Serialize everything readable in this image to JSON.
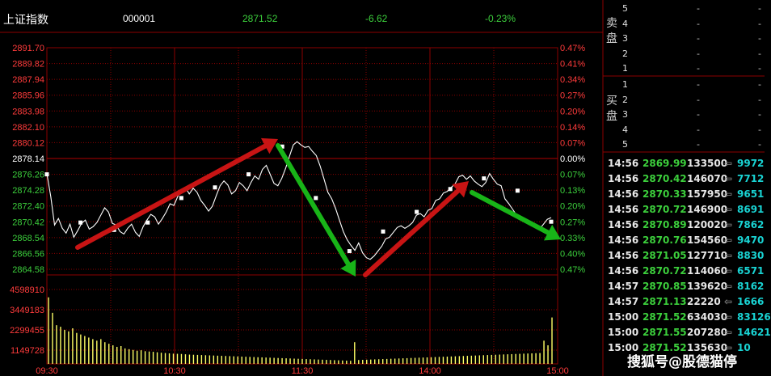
{
  "header": {
    "index_name": "上证指数",
    "code": "000001",
    "last_price": "2871.52",
    "change": "-6.62",
    "change_pct": "-0.23%"
  },
  "colors": {
    "up": "#ff3b3b",
    "down": "#3ccf3c",
    "text": "#c8c8c8",
    "grid": "#8b0000",
    "price_line": "#ffffff",
    "volume": "#ffff66",
    "arrow_up": "#c81414",
    "arrow_down": "#18b418"
  },
  "left_axis": [
    {
      "label": "2891.70",
      "kind": "up"
    },
    {
      "label": "2889.82",
      "kind": "up"
    },
    {
      "label": "2887.94",
      "kind": "up"
    },
    {
      "label": "2885.96",
      "kind": "up"
    },
    {
      "label": "2883.98",
      "kind": "up"
    },
    {
      "label": "2882.10",
      "kind": "up"
    },
    {
      "label": "2880.12",
      "kind": "up"
    },
    {
      "label": "2878.14",
      "kind": "base"
    },
    {
      "label": "2876.26",
      "kind": "down"
    },
    {
      "label": "2874.28",
      "kind": "down"
    },
    {
      "label": "2872.40",
      "kind": "down"
    },
    {
      "label": "2870.42",
      "kind": "down"
    },
    {
      "label": "2868.54",
      "kind": "down"
    },
    {
      "label": "2866.56",
      "kind": "down"
    },
    {
      "label": "2864.58",
      "kind": "down"
    }
  ],
  "right_axis": [
    {
      "label": "0.47%",
      "kind": "up"
    },
    {
      "label": "0.41%",
      "kind": "up"
    },
    {
      "label": "0.34%",
      "kind": "up"
    },
    {
      "label": "0.27%",
      "kind": "up"
    },
    {
      "label": "0.20%",
      "kind": "up"
    },
    {
      "label": "0.14%",
      "kind": "up"
    },
    {
      "label": "0.07%",
      "kind": "up"
    },
    {
      "label": "0.00%",
      "kind": "base"
    },
    {
      "label": "0.07%",
      "kind": "down"
    },
    {
      "label": "0.13%",
      "kind": "down"
    },
    {
      "label": "0.20%",
      "kind": "down"
    },
    {
      "label": "0.27%",
      "kind": "down"
    },
    {
      "label": "0.33%",
      "kind": "down"
    },
    {
      "label": "0.40%",
      "kind": "down"
    },
    {
      "label": "0.47%",
      "kind": "down"
    }
  ],
  "volume_axis": [
    "4598910",
    "3449183",
    "2299455",
    "1149728"
  ],
  "time_axis": [
    "09:30",
    "10:30",
    "11:30",
    "14:00",
    "15:00"
  ],
  "price_series": [
    2876.3,
    2873.5,
    2870.0,
    2870.8,
    2869.6,
    2869.0,
    2870.1,
    2868.5,
    2869.3,
    2870.2,
    2870.6,
    2869.5,
    2869.8,
    2870.3,
    2871.2,
    2872.1,
    2871.6,
    2870.2,
    2870.0,
    2869.2,
    2868.9,
    2869.6,
    2870.1,
    2869.1,
    2868.6,
    2869.8,
    2870.6,
    2871.3,
    2871.0,
    2870.1,
    2870.8,
    2871.6,
    2872.6,
    2872.4,
    2873.5,
    2874.2,
    2874.6,
    2873.8,
    2874.5,
    2874.0,
    2873.0,
    2872.4,
    2871.7,
    2872.3,
    2873.6,
    2874.8,
    2875.4,
    2874.9,
    2873.8,
    2874.2,
    2875.2,
    2874.8,
    2874.2,
    2875.2,
    2876.0,
    2875.6,
    2876.8,
    2877.3,
    2876.2,
    2875.1,
    2874.8,
    2875.7,
    2876.9,
    2878.4,
    2879.8,
    2880.2,
    2879.8,
    2879.5,
    2879.6,
    2879.0,
    2878.5,
    2877.2,
    2875.6,
    2874.0,
    2873.2,
    2872.0,
    2870.6,
    2869.2,
    2868.2,
    2867.5,
    2866.9,
    2867.8,
    2866.6,
    2866.0,
    2865.8,
    2866.2,
    2866.8,
    2867.4,
    2868.3,
    2868.5,
    2869.1,
    2869.7,
    2869.9,
    2869.6,
    2869.9,
    2870.3,
    2871.2,
    2871.4,
    2871.0,
    2871.8,
    2872.0,
    2873.0,
    2873.2,
    2873.9,
    2874.1,
    2874.6,
    2875.0,
    2875.9,
    2876.1,
    2875.6,
    2876.0,
    2875.4,
    2875.0,
    2874.7,
    2875.2,
    2876.3,
    2875.6,
    2875.0,
    2874.8,
    2873.2,
    2872.6,
    2871.9,
    2871.2,
    2870.9,
    2870.6,
    2870.4,
    2870.0,
    2869.9,
    2869.5,
    2870.1,
    2870.7,
    2870.9
  ],
  "avg_markers": [
    2876.2,
    2870.3,
    2869.4,
    2870.3,
    2873.3,
    2874.6,
    2876.2,
    2879.6,
    2873.3,
    2866.8,
    2869.2,
    2871.6,
    2874.4,
    2875.7,
    2874.2,
    2870.4
  ],
  "volume_series": [
    4300000,
    3300000,
    2500000,
    2400000,
    2200000,
    2100000,
    2300000,
    2000000,
    1900000,
    1800000,
    1700000,
    1600000,
    1500000,
    1600000,
    1400000,
    1300000,
    1200000,
    1100000,
    1150000,
    1000000,
    950000,
    900000,
    850000,
    880000,
    820000,
    800000,
    780000,
    750000,
    720000,
    700000,
    680000,
    660000,
    650000,
    640000,
    620000,
    600000,
    590000,
    580000,
    570000,
    560000,
    550000,
    540000,
    530000,
    520000,
    510000,
    500000,
    490000,
    480000,
    470000,
    460000,
    450000,
    440000,
    430000,
    420000,
    410000,
    400000,
    390000,
    380000,
    370000,
    360000,
    350000,
    340000,
    330000,
    320000,
    310000,
    300000,
    290000,
    280000,
    270000,
    260000,
    250000,
    240000,
    230000,
    220000,
    210000,
    200000,
    1400000,
    250000,
    260000,
    270000,
    280000,
    290000,
    300000,
    310000,
    320000,
    330000,
    340000,
    350000,
    360000,
    370000,
    380000,
    390000,
    400000,
    410000,
    420000,
    430000,
    440000,
    450000,
    460000,
    470000,
    480000,
    490000,
    500000,
    510000,
    520000,
    530000,
    540000,
    550000,
    560000,
    570000,
    580000,
    590000,
    600000,
    610000,
    620000,
    630000,
    640000,
    650000,
    660000,
    670000,
    680000,
    690000,
    700000,
    1500000,
    1200000,
    3000000
  ],
  "order_book": {
    "sell_label": "卖盘",
    "buy_label": "买盘",
    "sell_levels": [
      "5",
      "4",
      "3",
      "2",
      "1"
    ],
    "buy_levels": [
      "1",
      "2",
      "3",
      "4",
      "5"
    ],
    "placeholder": "-"
  },
  "ticks": [
    {
      "time": "14:56",
      "price": "2869.99",
      "volume": "133500",
      "extra": "9972",
      "dir": "down"
    },
    {
      "time": "14:56",
      "price": "2870.42",
      "volume": "146070",
      "extra": "7712",
      "dir": "down"
    },
    {
      "time": "14:56",
      "price": "2870.33",
      "volume": "157950",
      "extra": "9651",
      "dir": "down"
    },
    {
      "time": "14:56",
      "price": "2870.72",
      "volume": "146900",
      "extra": "8691",
      "dir": "down"
    },
    {
      "time": "14:56",
      "price": "2870.89",
      "volume": "120020",
      "extra": "7862",
      "dir": "down"
    },
    {
      "time": "14:56",
      "price": "2870.76",
      "volume": "154560",
      "extra": "9470",
      "dir": "down"
    },
    {
      "time": "14:56",
      "price": "2871.05",
      "volume": "127710",
      "extra": "8830",
      "dir": "down"
    },
    {
      "time": "14:56",
      "price": "2870.72",
      "volume": "114060",
      "extra": "6571",
      "dir": "down"
    },
    {
      "time": "14:57",
      "price": "2870.85",
      "volume": "139620",
      "extra": "8162",
      "dir": "down"
    },
    {
      "time": "14:57",
      "price": "2871.13",
      "volume": "22220",
      "extra": "1666",
      "dir": "down"
    },
    {
      "time": "15:00",
      "price": "2871.52",
      "volume": "634030",
      "extra": "83126",
      "dir": "down"
    },
    {
      "time": "15:00",
      "price": "2871.55",
      "volume": "207280",
      "extra": "14621",
      "dir": "down"
    },
    {
      "time": "15:00",
      "price": "2871.52",
      "volume": "135630",
      "extra": "10",
      "dir": "down"
    }
  ],
  "watermark": "搜狐号@股德猫停"
}
